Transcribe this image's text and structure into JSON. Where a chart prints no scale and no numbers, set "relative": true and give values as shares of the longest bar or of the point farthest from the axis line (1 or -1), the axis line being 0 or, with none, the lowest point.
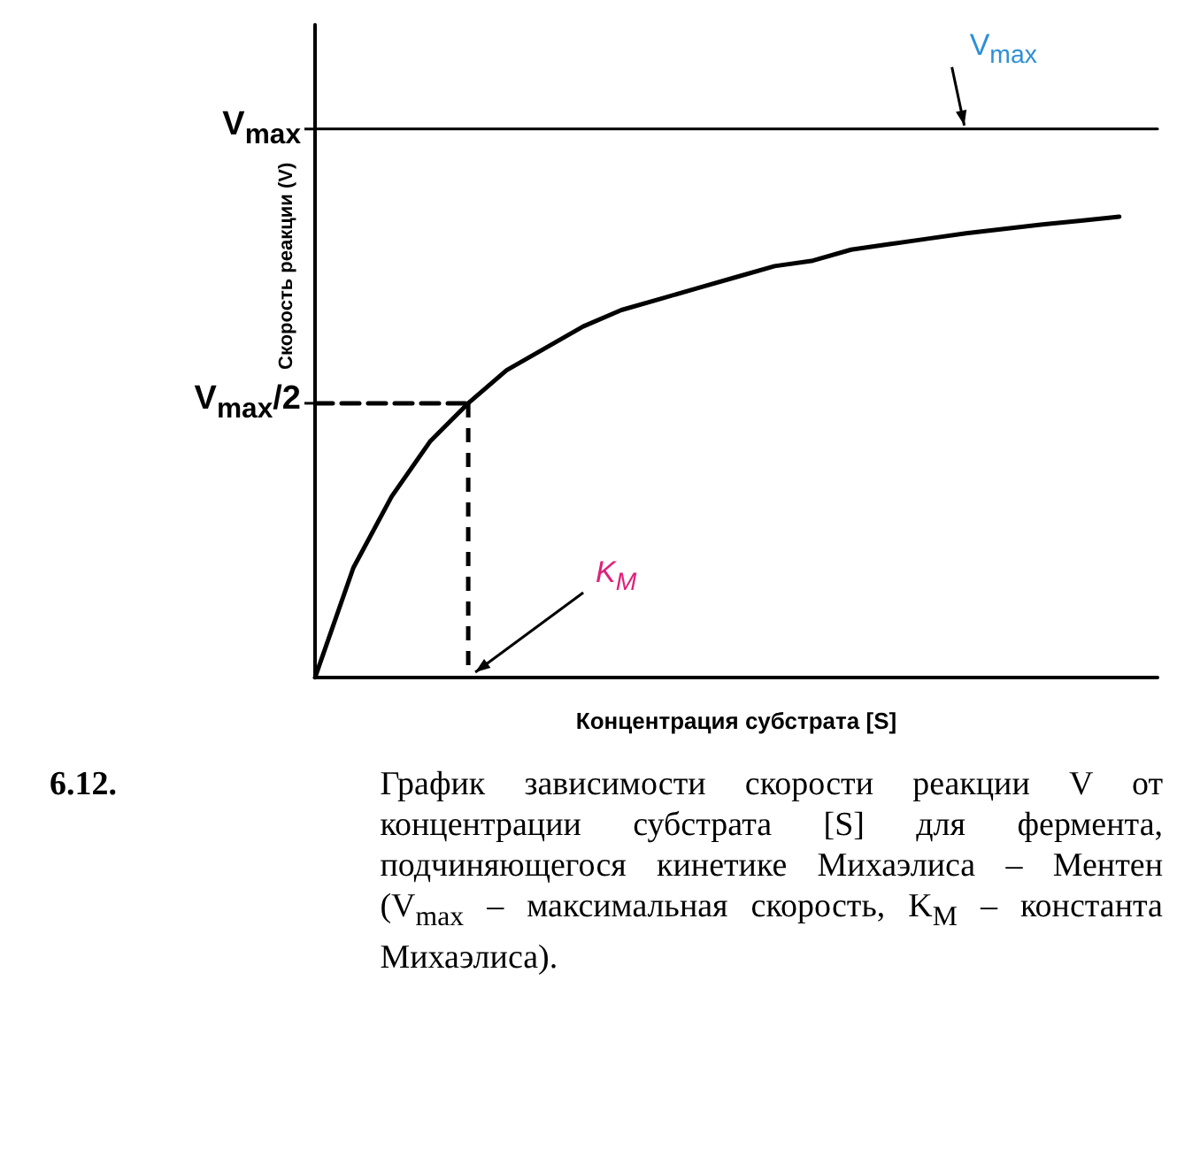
{
  "chart_data": {
    "type": "line",
    "xlabel": "Концентрация субстрата [S]",
    "ylabel": "Скорость реакции (V)",
    "relative": true,
    "categories": [
      null,
      null,
      null,
      null,
      null,
      null,
      null,
      null,
      null,
      null,
      null,
      null,
      null,
      null,
      null,
      null,
      null,
      null,
      null,
      null,
      null,
      null,
      null
    ],
    "series": [
      {
        "color": "#000000",
        "values": [
          0,
          0.2,
          0.33,
          0.43,
          0.5,
          0.56,
          0.6,
          0.64,
          0.67,
          0.69,
          0.71,
          0.73,
          0.75,
          0.76,
          0.78,
          0.79,
          0.8,
          0.81,
          0.818,
          0.826,
          0.833,
          0.84,
          null
        ]
      },
      {
        "name": "V$_{max}$",
        "color": "#000000",
        "values": [
          1,
          1,
          1,
          1,
          1,
          1,
          1,
          1,
          1,
          1,
          1,
          1,
          1,
          1,
          1,
          1,
          1,
          1,
          1,
          1,
          1,
          1,
          1
        ]
      },
      {
        "color": "#000000",
        "line_style": "dashed",
        "values": [
          0.5,
          0.5,
          0.5,
          0.5,
          0.5,
          null,
          null,
          null,
          null,
          null,
          null,
          null,
          null,
          null,
          null,
          null,
          null,
          null,
          null,
          null,
          null,
          null,
          null
        ]
      }
    ],
    "grid": false,
    "marker": "none",
    "line_style": "solid",
    "annotations": [
      "V$_{max}$",
      "V$_{max}$/2",
      "K$_{M}$",
      "6.12.",
      "График зависимости скорости реакции V от концентрации субстрата [S] для фермента, подчиняющегося кинетике Михаэлиса – Ментен (V$_{max}$ – максимальная скорость, K$_{M}$ – константа Михаэлиса)."
    ]
  }
}
